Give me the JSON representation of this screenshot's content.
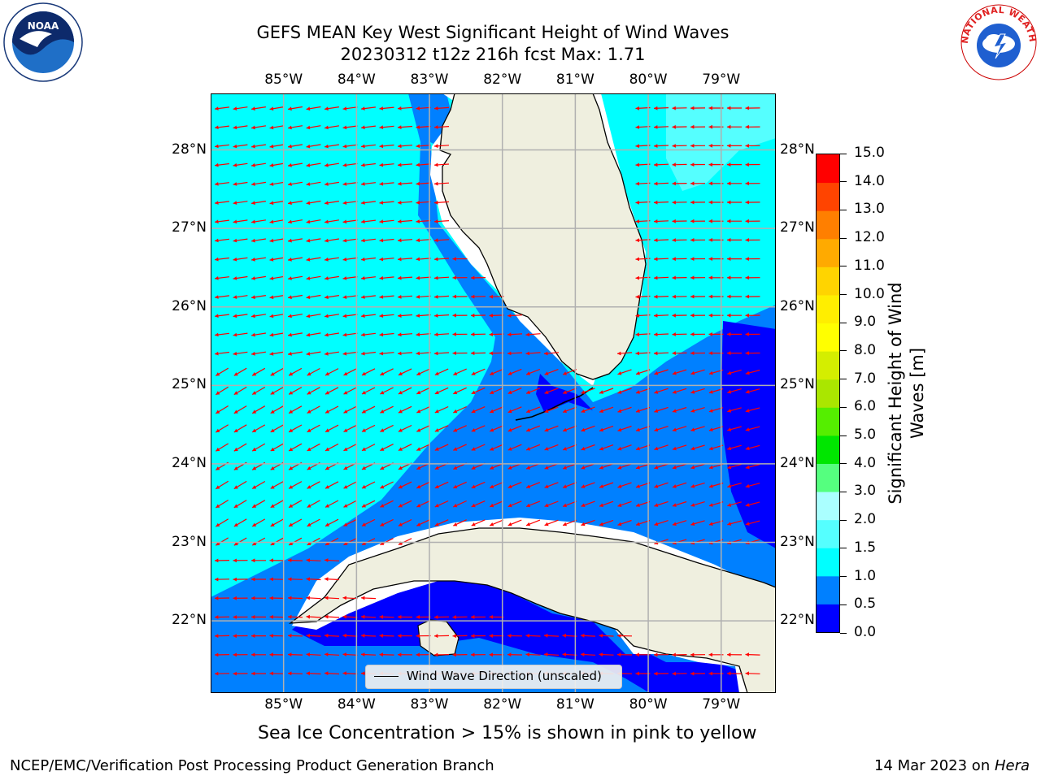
{
  "title": {
    "line1": "GEFS MEAN Key West Significant Height of Wind Waves",
    "line2": "20230312 t12z 216h fcst   Max: 1.71"
  },
  "axes": {
    "lon_labels": [
      "85°W",
      "84°W",
      "83°W",
      "82°W",
      "81°W",
      "80°W",
      "79°W"
    ],
    "lon_values": [
      -85,
      -84,
      -83,
      -82,
      -81,
      -80,
      -79
    ],
    "lat_labels": [
      "28°N",
      "27°N",
      "26°N",
      "25°N",
      "24°N",
      "23°N",
      "22°N"
    ],
    "lat_values": [
      28,
      27,
      26,
      25,
      24,
      23,
      22
    ],
    "lon_range": [
      -86.0,
      -78.25
    ],
    "lat_range": [
      21.08,
      28.72
    ]
  },
  "legend": {
    "label": "Wind Wave Direction (unscaled)"
  },
  "colorbar": {
    "label_line1": "Significant Height of Wind",
    "label_line2": "Waves [m]",
    "tick_labels": [
      "15.0",
      "14.0",
      "13.0",
      "12.0",
      "11.0",
      "10.0",
      "9.0",
      "8.0",
      "7.0",
      "6.0",
      "5.0",
      "4.0",
      "3.0",
      "2.0",
      "1.5",
      "1.0",
      "0.5",
      "0.0"
    ],
    "levels": [
      0.0,
      0.5,
      1.0,
      1.5,
      2.0,
      3.0,
      4.0,
      5.0,
      6.0,
      7.0,
      8.0,
      9.0,
      10.0,
      11.0,
      12.0,
      13.0,
      14.0,
      15.0
    ],
    "colors": [
      "#0000ff",
      "#0080ff",
      "#00ffff",
      "#55ffff",
      "#aaffff",
      "#55ff7f",
      "#00e600",
      "#55ee00",
      "#aae600",
      "#d4ee00",
      "#ffff00",
      "#ffee00",
      "#ffd400",
      "#ffaa00",
      "#ff7f00",
      "#ff4400",
      "#ff0000"
    ]
  },
  "colors": {
    "land": "#efefdf",
    "coast": "#000000",
    "grid": "#b0b0b0",
    "arrow": "#ff0000",
    "no_data": "#ffffff"
  },
  "subnote": "Sea Ice Concentration > 15% is shown in pink to yellow",
  "footer": {
    "left": "NCEP/EMC/Verification Post Processing Product Generation Branch",
    "right_prefix": "14 Mar 2023 on ",
    "right_host": "Hera"
  },
  "logos": {
    "left": "NOAA",
    "right": "NATIONAL WEATHER SERVICE"
  }
}
